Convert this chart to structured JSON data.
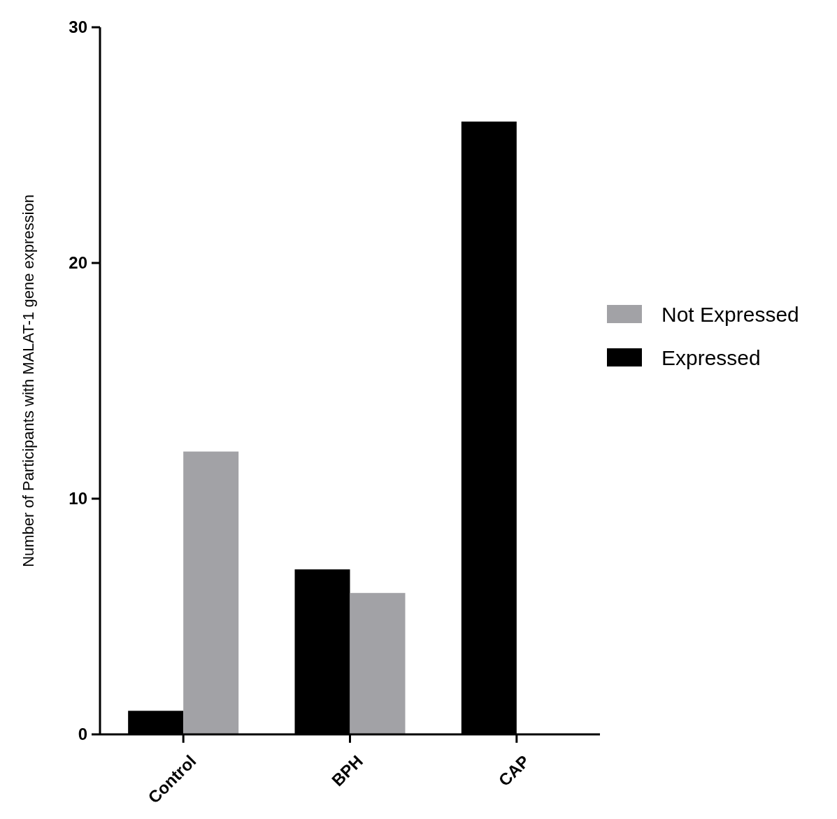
{
  "chart_data": {
    "type": "bar",
    "ylabel": "Number of Participants with MALAT-1 gene expression",
    "categories": [
      "Control",
      "BPH",
      "CAP"
    ],
    "series": [
      {
        "name": "Expressed",
        "color": "#000000",
        "values": [
          1,
          7,
          26
        ]
      },
      {
        "name": "Not Expressed",
        "color": "#a2a2a6",
        "values": [
          12,
          6,
          0
        ]
      }
    ],
    "ylim": [
      0,
      30
    ],
    "yticks": [
      0,
      10,
      20,
      30
    ],
    "grid": false,
    "legend": "right"
  }
}
